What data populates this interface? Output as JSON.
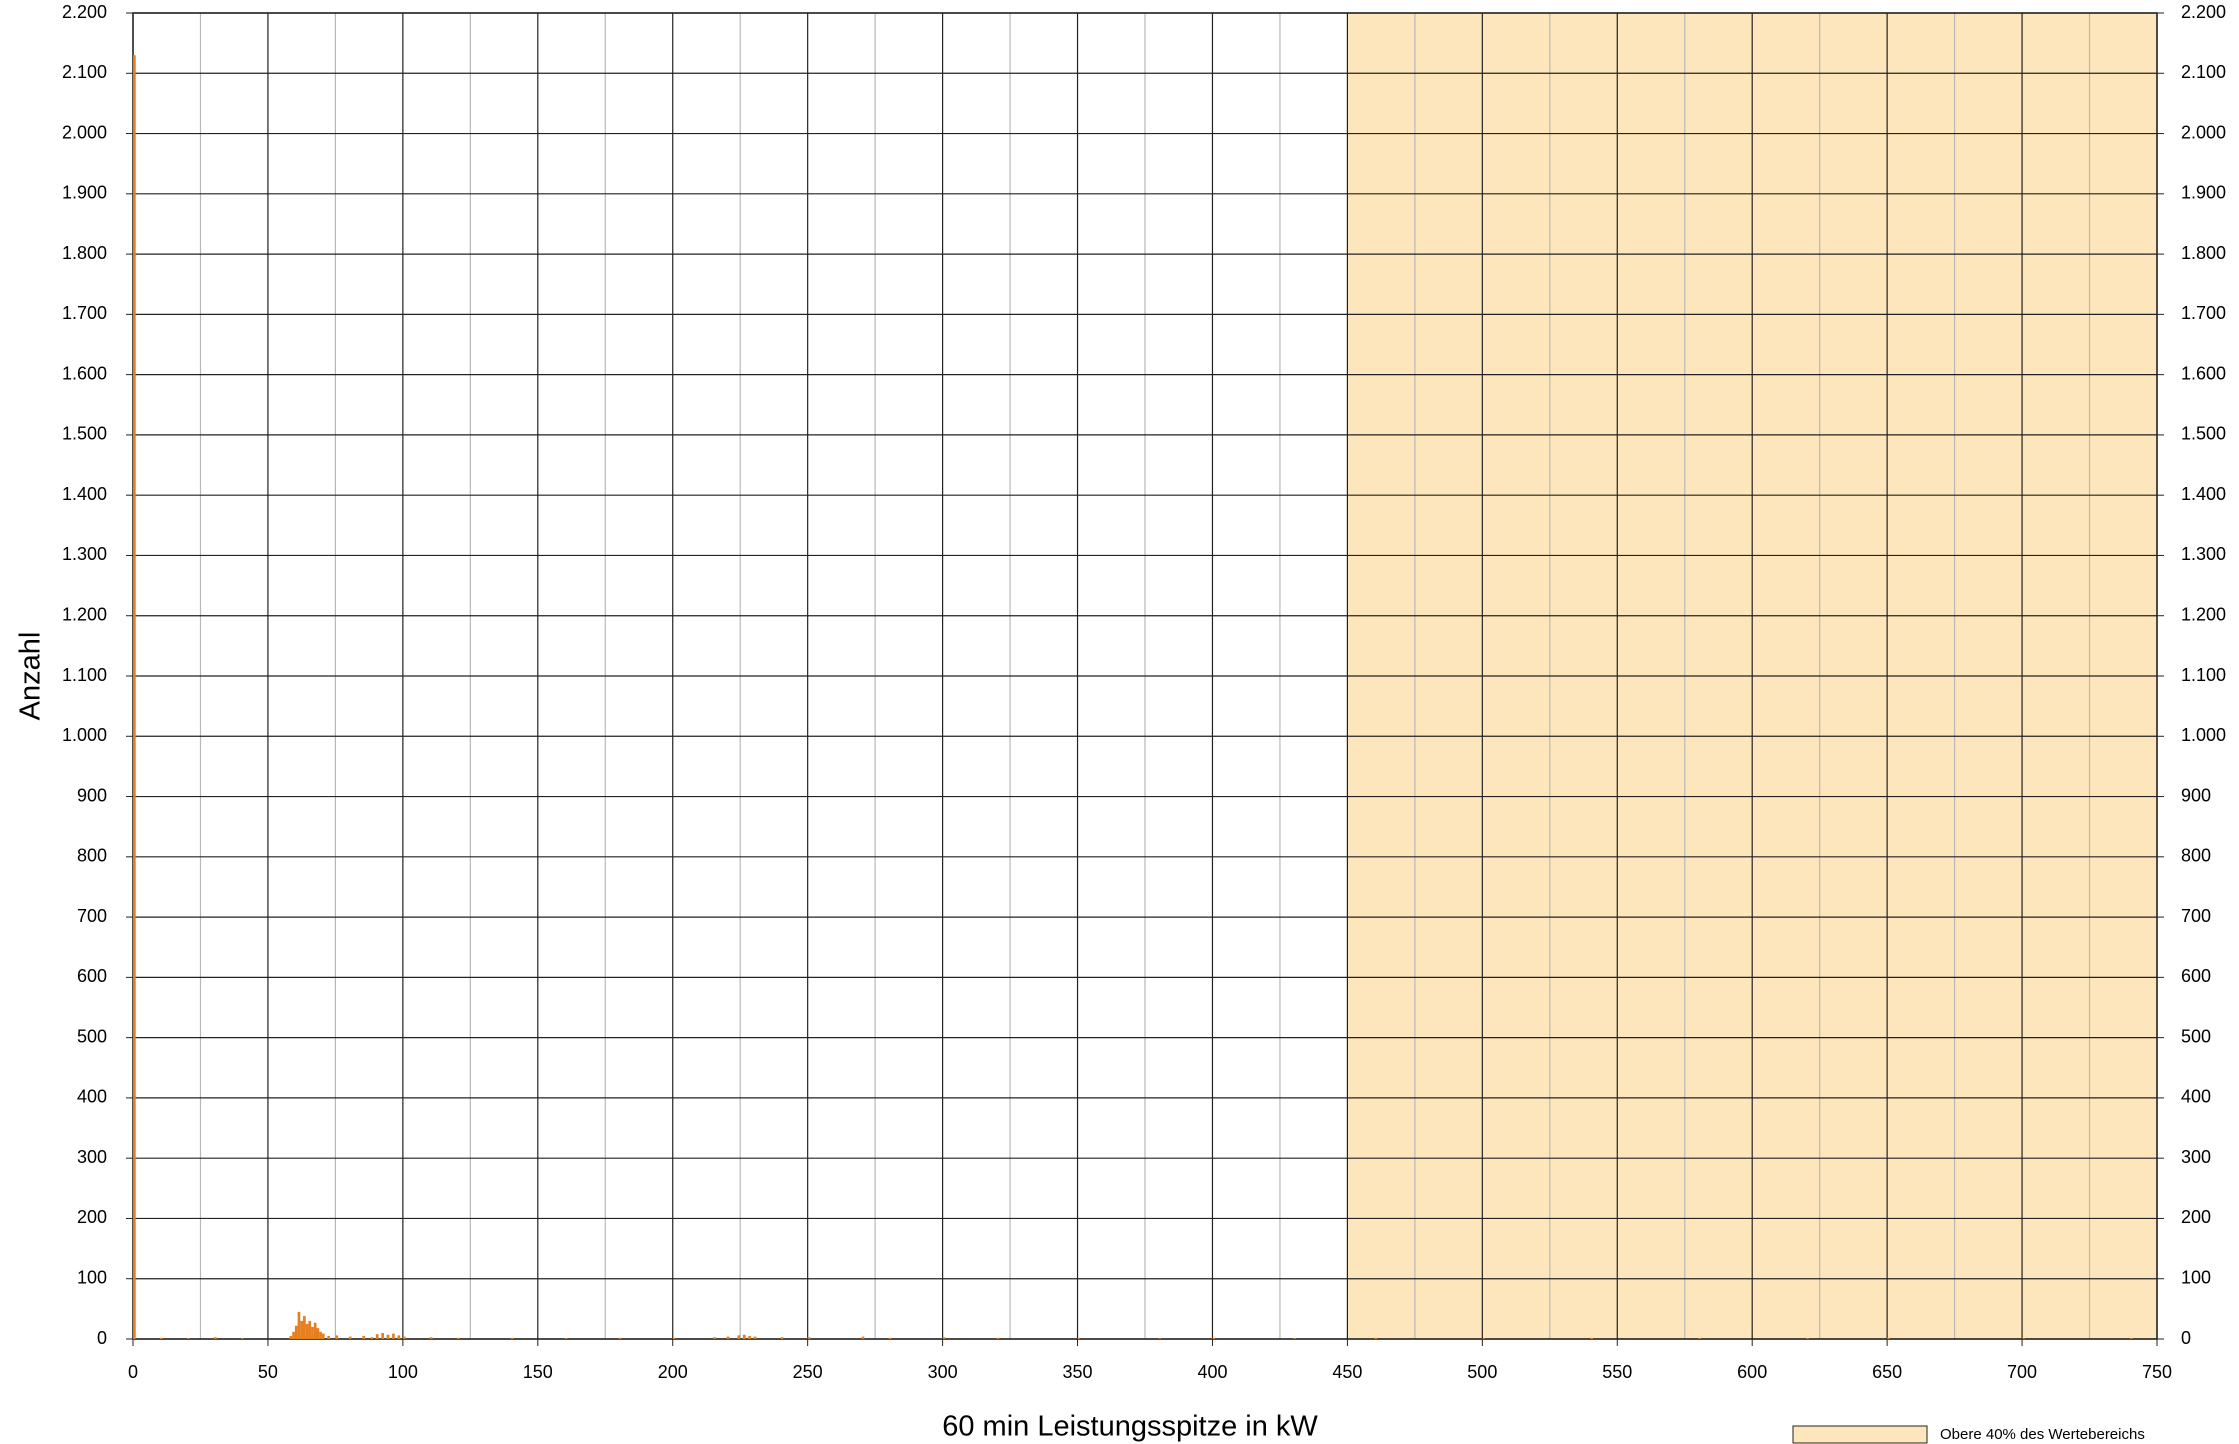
{
  "chart_data": {
    "type": "bar",
    "xlabel": "60 min Leistungsspitze in kW",
    "ylabel": "Anzahl",
    "x": [
      0,
      10,
      20,
      30,
      40,
      58,
      59,
      60,
      61,
      62,
      63,
      64,
      65,
      66,
      67,
      68,
      69,
      70,
      72,
      75,
      80,
      85,
      88,
      90,
      92,
      94,
      96,
      98,
      100,
      110,
      120,
      140,
      160,
      180,
      200,
      215,
      220,
      224,
      226,
      228,
      230,
      240,
      250,
      270,
      280,
      300,
      320,
      350,
      380,
      400,
      430,
      460,
      500,
      540,
      580,
      620,
      650,
      700,
      740
    ],
    "values": [
      2130,
      2,
      1,
      3,
      1,
      5,
      12,
      22,
      45,
      30,
      38,
      25,
      30,
      20,
      27,
      18,
      12,
      9,
      5,
      6,
      4,
      5,
      3,
      8,
      10,
      7,
      9,
      6,
      4,
      3,
      2,
      2,
      1,
      2,
      2,
      3,
      4,
      6,
      7,
      5,
      4,
      3,
      3,
      4,
      2,
      3,
      2,
      2,
      1,
      2,
      1,
      2,
      1,
      2,
      1,
      1,
      2,
      1,
      1
    ],
    "color": "#e67e1e",
    "xlim": [
      0,
      750
    ],
    "xticks": [
      0,
      50,
      100,
      150,
      200,
      250,
      300,
      350,
      400,
      450,
      500,
      550,
      600,
      650,
      700,
      750
    ],
    "xminor": [
      25,
      75,
      125,
      175,
      225,
      275,
      325,
      375,
      425,
      475,
      525,
      575,
      625,
      675,
      725
    ],
    "ylim": [
      0,
      2200
    ],
    "yticks": [
      0,
      100,
      200,
      300,
      400,
      500,
      600,
      700,
      800,
      900,
      {
        "value": 1000,
        "label": "1.000"
      },
      {
        "value": 1100,
        "label": "1.100"
      },
      {
        "value": 1200,
        "label": "1.200"
      },
      {
        "value": 1300,
        "label": "1.300"
      },
      {
        "value": 1400,
        "label": "1.400"
      },
      {
        "value": 1500,
        "label": "1.500"
      },
      {
        "value": 1600,
        "label": "1.600"
      },
      {
        "value": 1700,
        "label": "1.700"
      },
      {
        "value": 1800,
        "label": "1.800"
      },
      {
        "value": 1900,
        "label": "1.900"
      },
      {
        "value": 2000,
        "label": "2.000"
      },
      {
        "value": 2100,
        "label": "2.100"
      },
      {
        "value": 2200,
        "label": "2.200"
      }
    ],
    "grid": true,
    "highlight": {
      "range": [
        450,
        750
      ],
      "color": "#fde6bb",
      "label": "Obere 40% des Wertebereichs"
    }
  }
}
